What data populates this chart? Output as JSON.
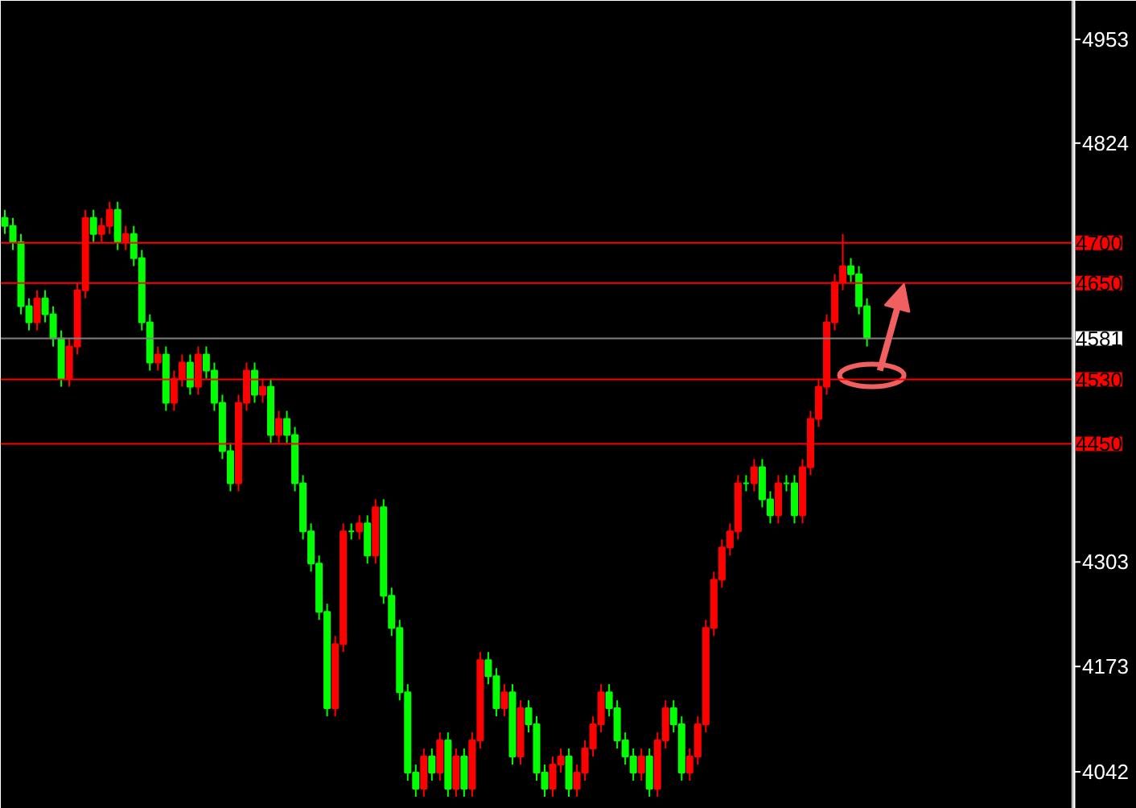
{
  "chart_data": {
    "type": "candlestick",
    "categories": [
      null,
      null,
      null,
      null,
      null,
      null,
      null,
      null,
      null,
      null,
      null,
      null,
      null,
      null,
      null,
      null,
      null,
      null,
      null,
      null,
      null,
      null,
      null,
      null,
      null,
      null,
      null,
      null,
      null,
      null,
      null,
      null,
      null,
      null,
      null,
      null,
      null,
      null,
      null,
      null,
      null,
      null,
      null,
      null,
      null,
      null,
      null,
      null,
      null,
      null,
      null,
      null,
      null,
      null,
      null,
      null,
      null,
      null,
      null,
      null,
      null,
      null,
      null,
      null,
      null,
      null,
      null,
      null,
      null,
      null,
      null,
      null,
      null,
      null,
      null,
      null,
      null,
      null,
      null,
      null,
      null,
      null,
      null,
      null,
      null,
      null,
      null,
      null,
      null,
      null,
      null,
      null,
      null,
      null,
      null,
      null,
      null,
      null,
      null,
      null,
      null,
      null,
      null,
      null,
      null,
      null,
      null,
      null,
      null,
      null,
      null,
      null,
      null,
      null,
      null,
      null,
      null,
      null,
      null,
      null,
      null,
      null,
      null,
      null,
      null,
      null,
      null,
      null,
      null,
      null,
      null,
      null,
      null
    ],
    "ohlc": [
      [
        4731,
        4741,
        4711,
        4721
      ],
      [
        4721,
        4731,
        4691,
        4701
      ],
      [
        4701,
        4711,
        4611,
        4621
      ],
      [
        4621,
        4631,
        4591,
        4601
      ],
      [
        4601,
        4641,
        4591,
        4631
      ],
      [
        4631,
        4641,
        4601,
        4611
      ],
      [
        4611,
        4621,
        4571,
        4581
      ],
      [
        4581,
        4591,
        4521,
        4531
      ],
      [
        4531,
        4581,
        4521,
        4571
      ],
      [
        4571,
        4651,
        4561,
        4641
      ],
      [
        4641,
        4741,
        4631,
        4731
      ],
      [
        4731,
        4741,
        4701,
        4711
      ],
      [
        4711,
        4731,
        4701,
        4721
      ],
      [
        4721,
        4751,
        4711,
        4741
      ],
      [
        4741,
        4751,
        4691,
        4701
      ],
      [
        4701,
        4721,
        4691,
        4711
      ],
      [
        4711,
        4721,
        4671,
        4681
      ],
      [
        4681,
        4691,
        4591,
        4601
      ],
      [
        4601,
        4611,
        4541,
        4551
      ],
      [
        4551,
        4571,
        4541,
        4561
      ],
      [
        4561,
        4571,
        4491,
        4501
      ],
      [
        4501,
        4541,
        4491,
        4531
      ],
      [
        4531,
        4561,
        4521,
        4551
      ],
      [
        4551,
        4561,
        4511,
        4521
      ],
      [
        4521,
        4571,
        4511,
        4561
      ],
      [
        4561,
        4571,
        4531,
        4541
      ],
      [
        4541,
        4551,
        4491,
        4501
      ],
      [
        4501,
        4511,
        4431,
        4441
      ],
      [
        4441,
        4451,
        4391,
        4401
      ],
      [
        4401,
        4511,
        4391,
        4501
      ],
      [
        4501,
        4551,
        4491,
        4541
      ],
      [
        4541,
        4551,
        4501,
        4511
      ],
      [
        4511,
        4531,
        4501,
        4521
      ],
      [
        4521,
        4531,
        4451,
        4461
      ],
      [
        4461,
        4491,
        4451,
        4481
      ],
      [
        4481,
        4491,
        4451,
        4461
      ],
      [
        4461,
        4471,
        4391,
        4401
      ],
      [
        4401,
        4411,
        4331,
        4341
      ],
      [
        4341,
        4351,
        4291,
        4301
      ],
      [
        4301,
        4311,
        4231,
        4241
      ],
      [
        4241,
        4251,
        4111,
        4121
      ],
      [
        4121,
        4211,
        4111,
        4201
      ],
      [
        4201,
        4351,
        4191,
        4341
      ],
      [
        4341,
        4351,
        4331,
        4341
      ],
      [
        4341,
        4361,
        4331,
        4351
      ],
      [
        4351,
        4361,
        4301,
        4311
      ],
      [
        4311,
        4381,
        4301,
        4371
      ],
      [
        4371,
        4381,
        4251,
        4261
      ],
      [
        4261,
        4271,
        4211,
        4221
      ],
      [
        4221,
        4231,
        4131,
        4141
      ],
      [
        4141,
        4151,
        4031,
        4041
      ],
      [
        4041,
        4051,
        4011,
        4021
      ],
      [
        4021,
        4071,
        4011,
        4061
      ],
      [
        4061,
        4071,
        4031,
        4041
      ],
      [
        4041,
        4091,
        4031,
        4081
      ],
      [
        4081,
        4091,
        4011,
        4021
      ],
      [
        4021,
        4071,
        4011,
        4061
      ],
      [
        4061,
        4071,
        4011,
        4021
      ],
      [
        4021,
        4091,
        4011,
        4081
      ],
      [
        4081,
        4191,
        4071,
        4181
      ],
      [
        4181,
        4191,
        4151,
        4161
      ],
      [
        4161,
        4171,
        4111,
        4121
      ],
      [
        4121,
        4151,
        4111,
        4141
      ],
      [
        4141,
        4151,
        4051,
        4061
      ],
      [
        4061,
        4131,
        4051,
        4121
      ],
      [
        4121,
        4131,
        4091,
        4101
      ],
      [
        4101,
        4111,
        4031,
        4041
      ],
      [
        4041,
        4051,
        4011,
        4021
      ],
      [
        4021,
        4061,
        4011,
        4051
      ],
      [
        4051,
        4071,
        4041,
        4061
      ],
      [
        4061,
        4071,
        4011,
        4021
      ],
      [
        4021,
        4051,
        4011,
        4041
      ],
      [
        4041,
        4081,
        4031,
        4071
      ],
      [
        4071,
        4111,
        4061,
        4101
      ],
      [
        4101,
        4151,
        4091,
        4141
      ],
      [
        4141,
        4151,
        4111,
        4121
      ],
      [
        4121,
        4131,
        4071,
        4081
      ],
      [
        4081,
        4091,
        4051,
        4061
      ],
      [
        4061,
        4071,
        4031,
        4041
      ],
      [
        4041,
        4071,
        4031,
        4061
      ],
      [
        4061,
        4071,
        4011,
        4021
      ],
      [
        4021,
        4091,
        4011,
        4081
      ],
      [
        4081,
        4131,
        4071,
        4121
      ],
      [
        4121,
        4131,
        4091,
        4101
      ],
      [
        4101,
        4111,
        4031,
        4041
      ],
      [
        4041,
        4071,
        4031,
        4061
      ],
      [
        4061,
        4111,
        4051,
        4101
      ],
      [
        4101,
        4231,
        4091,
        4221
      ],
      [
        4221,
        4291,
        4211,
        4281
      ],
      [
        4281,
        4331,
        4271,
        4321
      ],
      [
        4321,
        4351,
        4311,
        4341
      ],
      [
        4341,
        4411,
        4331,
        4401
      ],
      [
        4401,
        4411,
        4391,
        4401
      ],
      [
        4401,
        4431,
        4391,
        4421
      ],
      [
        4421,
        4431,
        4371,
        4381
      ],
      [
        4381,
        4391,
        4351,
        4361
      ],
      [
        4361,
        4411,
        4351,
        4401
      ],
      [
        4401,
        4411,
        4391,
        4401
      ],
      [
        4401,
        4411,
        4351,
        4361
      ],
      [
        4361,
        4431,
        4351,
        4421
      ],
      [
        4421,
        4491,
        4411,
        4481
      ],
      [
        4481,
        4531,
        4471,
        4521
      ],
      [
        4521,
        4611,
        4511,
        4601
      ],
      [
        4601,
        4661,
        4591,
        4651
      ],
      [
        4651,
        4711,
        4641,
        4671
      ],
      [
        4671,
        4681,
        4651,
        4661
      ],
      [
        4661,
        4671,
        4611,
        4621
      ],
      [
        4621,
        4631,
        4571,
        4581
      ],
      null,
      null,
      null,
      null,
      null,
      null,
      null,
      null,
      null,
      null,
      null,
      null,
      null,
      null,
      null,
      null,
      null,
      null,
      null,
      null,
      null,
      null,
      null,
      null,
      null
    ],
    "colors": [
      "#00ff00",
      "#00ff00",
      "#00ff00",
      "#00ff00",
      "#ff0000",
      "#00ff00",
      "#00ff00",
      "#00ff00",
      "#ff0000",
      "#ff0000",
      "#ff0000",
      "#00ff00",
      "#ff0000",
      "#ff0000",
      "#00ff00",
      "#ff0000",
      "#00ff00",
      "#00ff00",
      "#00ff00",
      "#ff0000",
      "#00ff00",
      "#ff0000",
      "#ff0000",
      "#00ff00",
      "#ff0000",
      "#00ff00",
      "#00ff00",
      "#00ff00",
      "#00ff00",
      "#ff0000",
      "#ff0000",
      "#00ff00",
      "#ff0000",
      "#00ff00",
      "#ff0000",
      "#00ff00",
      "#00ff00",
      "#00ff00",
      "#00ff00",
      "#00ff00",
      "#00ff00",
      "#ff0000",
      "#ff0000",
      "#00ff00",
      "#ff0000",
      "#00ff00",
      "#ff0000",
      "#00ff00",
      "#00ff00",
      "#00ff00",
      "#00ff00",
      "#00ff00",
      "#ff0000",
      "#00ff00",
      "#ff0000",
      "#00ff00",
      "#ff0000",
      "#00ff00",
      "#ff0000",
      "#ff0000",
      "#00ff00",
      "#00ff00",
      "#ff0000",
      "#00ff00",
      "#ff0000",
      "#00ff00",
      "#00ff00",
      "#00ff00",
      "#ff0000",
      "#ff0000",
      "#00ff00",
      "#ff0000",
      "#ff0000",
      "#ff0000",
      "#ff0000",
      "#00ff00",
      "#00ff00",
      "#00ff00",
      "#00ff00",
      "#ff0000",
      "#00ff00",
      "#ff0000",
      "#ff0000",
      "#00ff00",
      "#00ff00",
      "#ff0000",
      "#ff0000",
      "#ff0000",
      "#ff0000",
      "#ff0000",
      "#ff0000",
      "#ff0000",
      "#00ff00",
      "#ff0000",
      "#00ff00",
      "#00ff00",
      "#ff0000",
      "#00ff00",
      "#00ff00",
      "#ff0000",
      "#ff0000",
      "#ff0000",
      "#ff0000",
      "#ff0000",
      "#ff0000",
      "#00ff00",
      "#00ff00",
      "#00ff00",
      null,
      null,
      null,
      null,
      null,
      null,
      null,
      null,
      null,
      null,
      null,
      null,
      null,
      null,
      null,
      null,
      null,
      null,
      null,
      null,
      null,
      null,
      null,
      null,
      null
    ],
    "ylim": [
      3996,
      5001
    ],
    "yticks": [
      4953,
      4824,
      4303,
      4173,
      4042
    ],
    "ref_lines": [
      {
        "axis": "y",
        "value": 4700,
        "label": "4700",
        "color": "#ff0000"
      },
      {
        "axis": "y",
        "value": 4650,
        "label": "4650",
        "color": "#ff0000"
      },
      {
        "axis": "y",
        "value": 4581,
        "label": "4581",
        "color": "#808080"
      },
      {
        "axis": "y",
        "value": 4530,
        "label": "4530",
        "color": "#ff0000"
      },
      {
        "axis": "y",
        "value": 4450,
        "label": "4450",
        "color": "#ff0000"
      }
    ]
  }
}
